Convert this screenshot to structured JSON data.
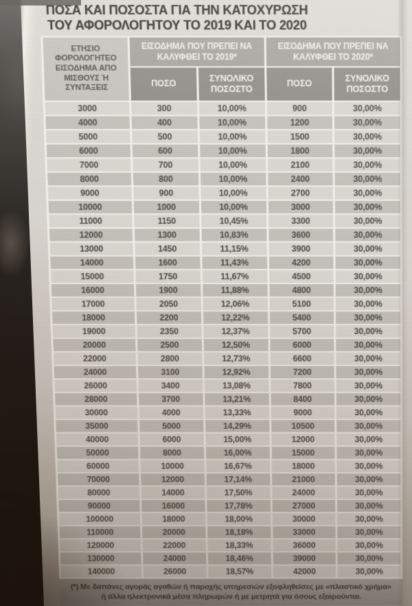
{
  "title": "ΠΟΣΑ ΚΑΙ ΠΟΣΟΣΤΑ ΓΙΑ ΤΗΝ ΚΑΤΟΧΥΡΩΣΗ ΤΟΥ ΑΦΟΡΟΛΟΓΗΤΟΥ ΤΟ 2019 ΚΑΙ ΤΟ 2020",
  "table": {
    "income_header": "ΕΤΗΣΙΟ ΦΟΡΟΛΟΓΗΤΕΟ ΕΙΣΟΔΗΜΑ ΑΠΟ ΜΙΣΘΟΥΣ Ή ΣΥΝΤΑΞΕΙΣ",
    "group_2019": "ΕΙΣΟΔΗΜΑ ΠΟΥ ΠΡΕΠΕΙ ΝΑ ΚΑΛΥΦΘΕΙ ΤΟ 2019*",
    "group_2020": "ΕΙΣΟΔΗΜΑ ΠΟΥ ΠΡΕΠΕΙ ΝΑ ΚΑΛΥΦΘΕΙ ΤΟ 2020*",
    "sub_amount": "ΠΟΣΟ",
    "sub_percent": "ΣΥΝΟΛΙΚΟ ΠΟΣΟΣΤΟ",
    "rows": [
      [
        "3000",
        "300",
        "10,00%",
        "900",
        "30,00%"
      ],
      [
        "4000",
        "400",
        "10,00%",
        "1200",
        "30,00%"
      ],
      [
        "5000",
        "500",
        "10,00%",
        "1500",
        "30,00%"
      ],
      [
        "6000",
        "600",
        "10,00%",
        "1800",
        "30,00%"
      ],
      [
        "7000",
        "700",
        "10,00%",
        "2100",
        "30,00%"
      ],
      [
        "8000",
        "800",
        "10,00%",
        "2400",
        "30,00%"
      ],
      [
        "9000",
        "900",
        "10,00%",
        "2700",
        "30,00%"
      ],
      [
        "10000",
        "1000",
        "10,00%",
        "3000",
        "30,00%"
      ],
      [
        "11000",
        "1150",
        "10,45%",
        "3300",
        "30,00%"
      ],
      [
        "12000",
        "1300",
        "10,83%",
        "3600",
        "30,00%"
      ],
      [
        "13000",
        "1450",
        "11,15%",
        "3900",
        "30,00%"
      ],
      [
        "14000",
        "1600",
        "11,43%",
        "4200",
        "30,00%"
      ],
      [
        "15000",
        "1750",
        "11,67%",
        "4500",
        "30,00%"
      ],
      [
        "16000",
        "1900",
        "11,88%",
        "4800",
        "30,00%"
      ],
      [
        "17000",
        "2050",
        "12,06%",
        "5100",
        "30,00%"
      ],
      [
        "18000",
        "2200",
        "12,22%",
        "5400",
        "30,00%"
      ],
      [
        "19000",
        "2350",
        "12,37%",
        "5700",
        "30,00%"
      ],
      [
        "20000",
        "2500",
        "12,50%",
        "6000",
        "30,00%"
      ],
      [
        "22000",
        "2800",
        "12,73%",
        "6600",
        "30,00%"
      ],
      [
        "24000",
        "3100",
        "12,92%",
        "7200",
        "30,00%"
      ],
      [
        "26000",
        "3400",
        "13,08%",
        "7800",
        "30,00%"
      ],
      [
        "28000",
        "3700",
        "13,21%",
        "8400",
        "30,00%"
      ],
      [
        "30000",
        "4000",
        "13,33%",
        "9000",
        "30,00%"
      ],
      [
        "35000",
        "5000",
        "14,29%",
        "10500",
        "30,00%"
      ],
      [
        "40000",
        "6000",
        "15,00%",
        "12000",
        "30,00%"
      ],
      [
        "50000",
        "8000",
        "16,00%",
        "15000",
        "30,00%"
      ],
      [
        "60000",
        "10000",
        "16,67%",
        "18000",
        "30,00%"
      ],
      [
        "70000",
        "12000",
        "17,14%",
        "21000",
        "30,00%"
      ],
      [
        "80000",
        "14000",
        "17,50%",
        "24000",
        "30,00%"
      ],
      [
        "90000",
        "16000",
        "17,78%",
        "27000",
        "30,00%"
      ],
      [
        "100000",
        "18000",
        "18,00%",
        "30000",
        "30,00%"
      ],
      [
        "110000",
        "20000",
        "18,18%",
        "33000",
        "30,00%"
      ],
      [
        "120000",
        "22000",
        "18,33%",
        "36000",
        "30,00%"
      ],
      [
        "130000",
        "24000",
        "18,46%",
        "39000",
        "30,00%"
      ],
      [
        "140000",
        "26000",
        "18,57%",
        "42000",
        "30,00%"
      ]
    ]
  },
  "footnote": "(*) Με δαπάνες αγοράς αγαθών ή παροχής υπηρεσιών εξοφληθείσες με «πλαστικό χρήμα» ή άλλα ηλεκτρονικά μέσα πληρωμών ή με μετρητά για όσους εξαιρούνται.",
  "colors": {
    "title_text": "#2a2824",
    "income_bg": "#c5c2bc",
    "income_text": "#504d47",
    "header_bg": "#a5a29c",
    "subheader_bg": "#8e8b85",
    "header_text": "#f2f1ed",
    "row_light": "#d9d6d0",
    "row_dark": "#c3c0b9",
    "cell_text": "#4b4843",
    "grid_gap": "#f1efe9",
    "footnote_bg": "#a9a6a0",
    "footnote_text": "#3b3833"
  }
}
